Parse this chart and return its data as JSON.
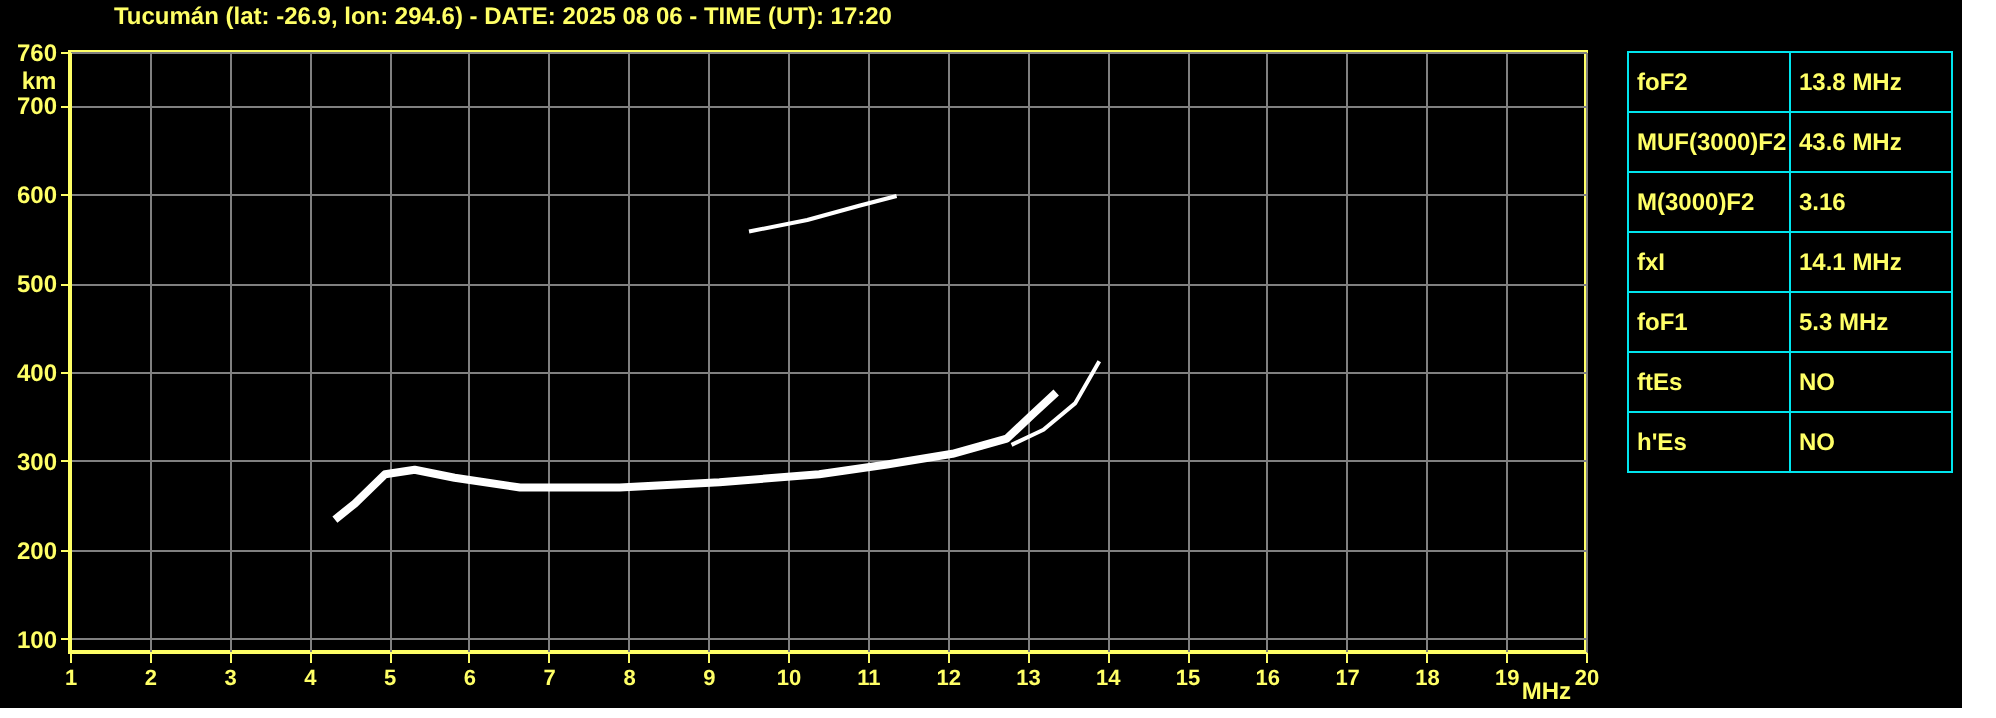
{
  "chart_data": [
    {
      "type": "line",
      "title": "Tucumán (lat: -26.9, lon: 294.6) - DATE: 2025 08 06 - TIME (UT): 17:20",
      "xlabel": "MHz",
      "ylabel": "km",
      "xlim": [
        1,
        20
      ],
      "ylim": [
        85,
        760
      ],
      "xticks": [
        1,
        2,
        3,
        4,
        5,
        6,
        7,
        8,
        9,
        10,
        11,
        12,
        13,
        14,
        15,
        16,
        17,
        18,
        19,
        20
      ],
      "yticks": [
        100,
        200,
        300,
        400,
        500,
        600,
        700,
        760
      ],
      "grid": true,
      "marker": "none",
      "line_style": "solid",
      "series": [
        {
          "color": "#ffffff",
          "x": [
            4.32,
            4.57,
            4.95,
            5.32,
            5.82,
            6.64,
            7.89,
            9.14,
            10.39,
            11.24,
            12.06,
            12.74,
            13.06,
            13.36
          ],
          "values": [
            234,
            252,
            285,
            290,
            281,
            270,
            270,
            276,
            285,
            296,
            308,
            325,
            352,
            377
          ]
        },
        {
          "color": "#ffffff",
          "x": [
            12.8,
            13.2,
            13.6,
            13.9
          ],
          "values": [
            318,
            335,
            365,
            412
          ]
        },
        {
          "color": "#ffffff",
          "x": [
            9.51,
            10.24,
            10.89,
            11.36
          ],
          "values": [
            558,
            571,
            587,
            598
          ]
        }
      ]
    },
    {
      "type": "other",
      "categories": [
        "foF2",
        "MUF(3000)F2",
        "M(3000)F2",
        "fxI",
        "foF1",
        "ftEs",
        "h'Es"
      ],
      "annotations": [
        "13.8 MHz",
        "43.6 MHz",
        "3.16",
        "14.1 MHz",
        "5.3 MHz",
        "NO",
        "NO"
      ]
    }
  ]
}
